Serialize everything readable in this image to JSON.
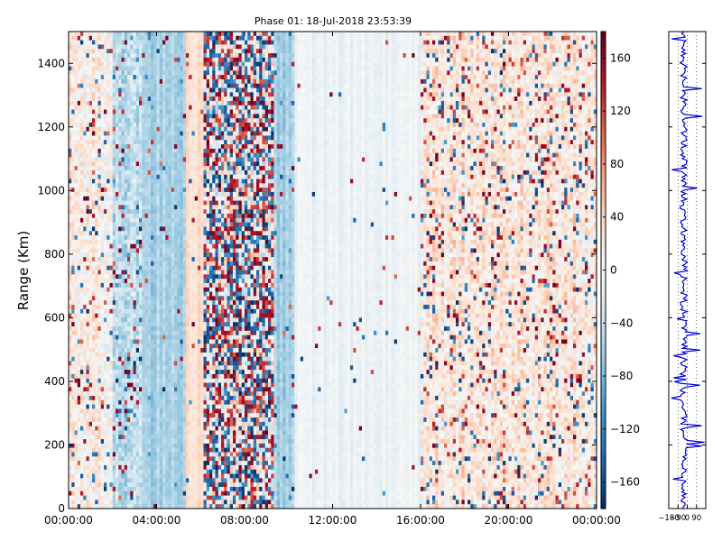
{
  "chart_data": [
    {
      "type": "heatmap",
      "title": "Phase 01: 18-Jul-2018 23:53:39",
      "xlabel": "",
      "ylabel": "Range (Km)",
      "x_tick_labels": [
        "00:00:00",
        "04:00:00",
        "08:00:00",
        "12:00:00",
        "16:00:00",
        "20:00:00",
        "00:00:00"
      ],
      "x_range_hours": [
        0,
        24
      ],
      "y_ticks": [
        0,
        200,
        400,
        600,
        800,
        1000,
        1200,
        1400
      ],
      "ylim": [
        0,
        1500
      ],
      "colormap": "RdBu_r",
      "colorbar": {
        "range": [
          -180,
          180
        ],
        "ticks": [
          -160,
          -120,
          -80,
          -40,
          0,
          40,
          80,
          120,
          160
        ],
        "tick_labels": [
          "−160",
          "−120",
          "−80",
          "−40",
          "0",
          "40",
          "80",
          "120",
          "160"
        ]
      },
      "column_profile": {
        "hour_start": [
          0,
          2,
          3.3,
          5.3,
          6.2,
          9.4,
          10.3,
          16,
          24
        ],
        "base_value": [
          10,
          -45,
          -60,
          30,
          0,
          -60,
          -10,
          20
        ],
        "noise_amplitude": [
          110,
          90,
          40,
          30,
          180,
          40,
          20,
          110
        ],
        "outlier_probability": [
          0.08,
          0.08,
          0.02,
          0.02,
          0.55,
          0.03,
          0.01,
          0.12
        ]
      }
    },
    {
      "type": "line",
      "title": "",
      "x_tick_labels": [
        "−180",
        "−90",
        "0",
        "90"
      ],
      "xlim": [
        -180,
        180
      ],
      "ylim": [
        0,
        1500
      ],
      "grid": true,
      "series_color": "#0000cc"
    }
  ],
  "colors": {
    "axes": "#000000",
    "line": "#0000cc",
    "grid": "#000000"
  }
}
